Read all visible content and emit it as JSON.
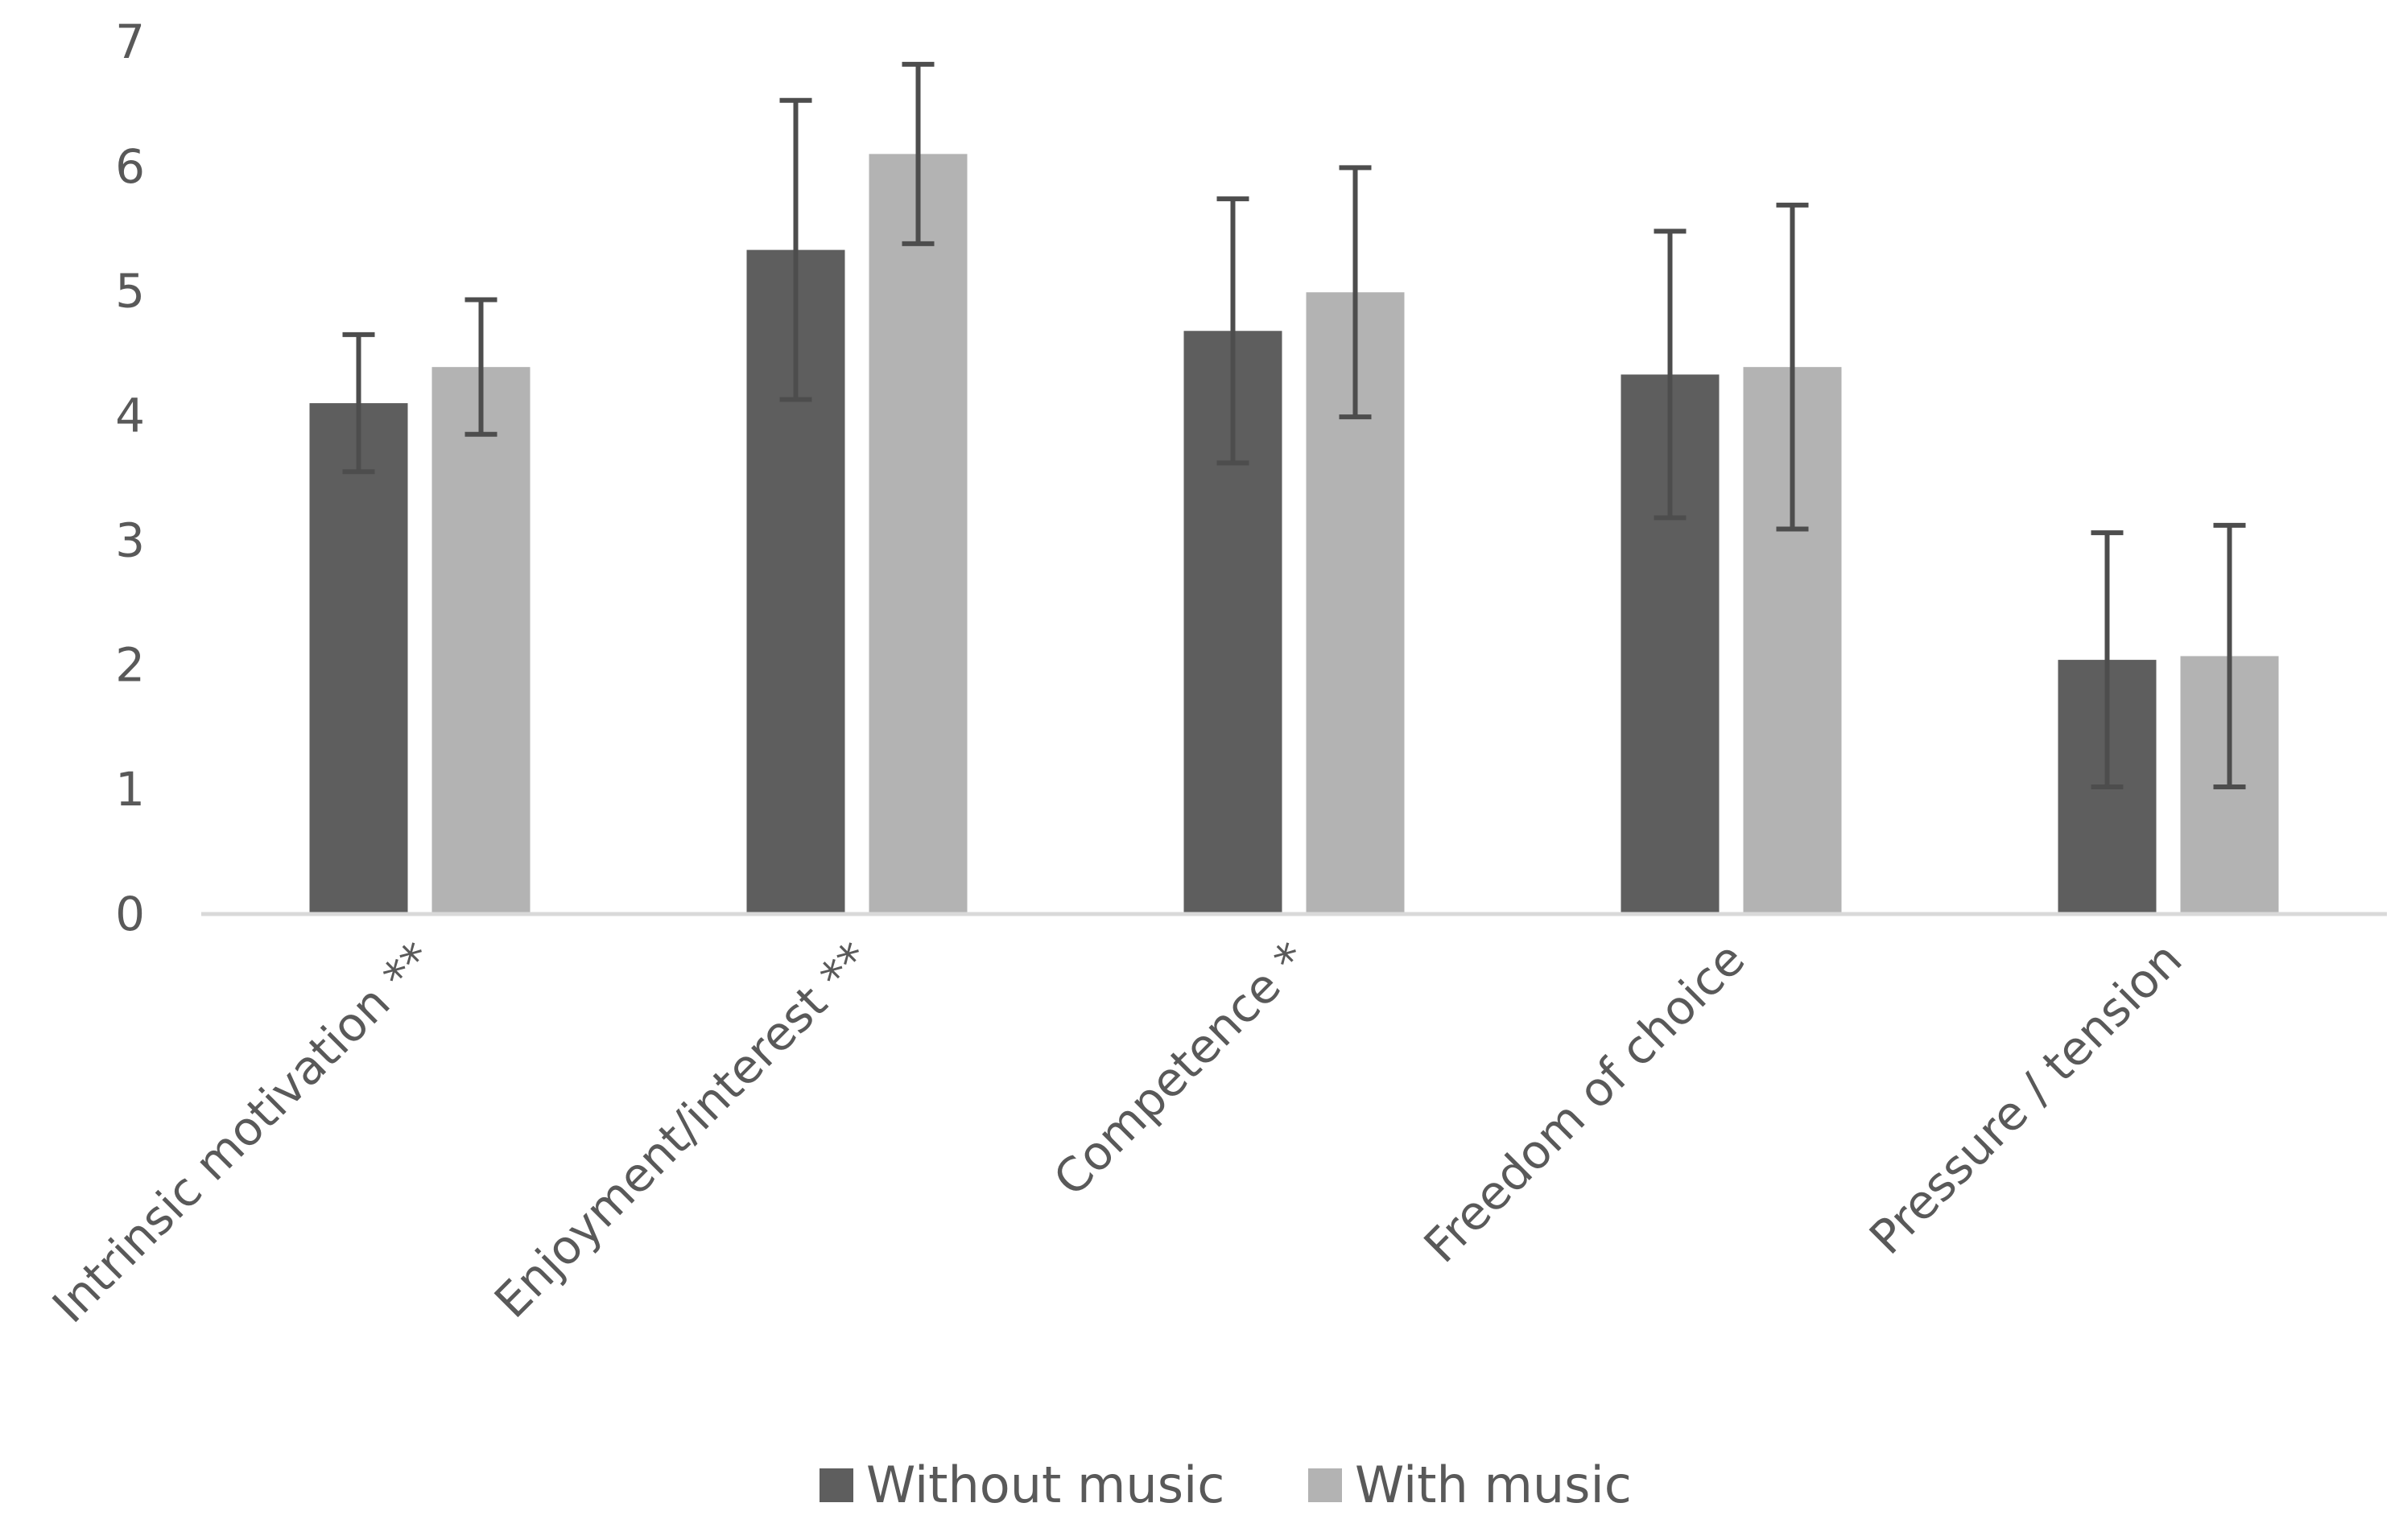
{
  "chart_data": {
    "type": "bar",
    "title": "",
    "xlabel": "",
    "ylabel": "",
    "ylim": [
      0,
      7
    ],
    "yticks": [
      0,
      1,
      2,
      3,
      4,
      5,
      6,
      7
    ],
    "grid": false,
    "legend_position": "bottom",
    "categories": [
      "Intrinsic motivation **",
      "Enjoyment/interest **",
      "Competence *",
      "Freedom of choice",
      "Pressure / tension"
    ],
    "series": [
      {
        "name": "Without music",
        "color": "#5e5e5e",
        "values": [
          4.1,
          5.33,
          4.68,
          4.33,
          2.04
        ],
        "error": [
          0.55,
          1.2,
          1.06,
          1.15,
          1.02
        ]
      },
      {
        "name": "With music",
        "color": "#b3b3b3",
        "values": [
          4.39,
          6.1,
          4.99,
          4.39,
          2.07
        ],
        "error": [
          0.54,
          0.72,
          1.0,
          1.3,
          1.05
        ]
      }
    ]
  }
}
